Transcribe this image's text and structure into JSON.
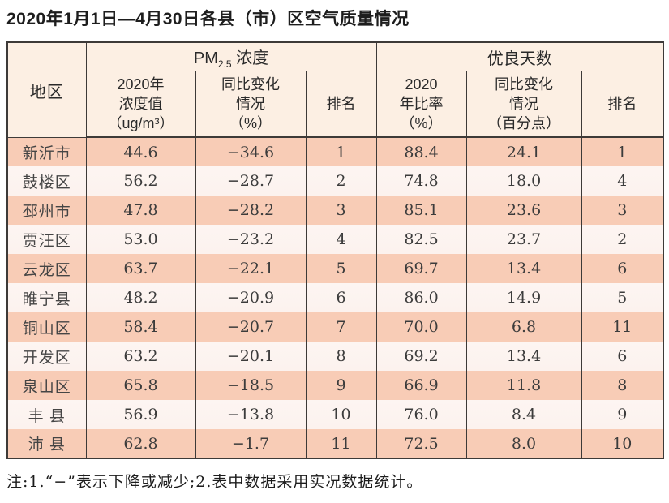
{
  "page": {
    "title": "2020年1月1日—4月30日各县（市）区空气质量情况",
    "note": "注:1.“−”表示下降或减少;2.表中数据采用实况数据统计。"
  },
  "table": {
    "region_header": "地区",
    "group1": {
      "prefix": "PM",
      "sub": "2.5",
      "suffix": " 浓度"
    },
    "group2": "优良天数",
    "subheaders": [
      "2020年\n浓度值\n（ug/m³）",
      "同比变化\n情况\n（%）",
      "排名",
      "2020\n年比率\n（%）",
      "同比变化\n情况\n（百分点）",
      "排名"
    ]
  },
  "colors": {
    "row_odd": "#f8ccb6",
    "row_even": "#fcf2ee",
    "header_bg": "#fcefe3",
    "border": "#3d3a38"
  },
  "chart_data": {
    "type": "table",
    "title": "2020年1月1日—4月30日各县（市）区空气质量情况",
    "columns": [
      "地区",
      "PM2.5浓度 2020年浓度值（ug/m³）",
      "PM2.5浓度 同比变化情况（%）",
      "PM2.5浓度 排名",
      "优良天数 2020年比率（%）",
      "优良天数 同比变化情况（百分点）",
      "优良天数 排名"
    ],
    "rows": [
      [
        "新沂市",
        "44.6",
        "−34.6",
        "1",
        "88.4",
        "24.1",
        "1"
      ],
      [
        "鼓楼区",
        "56.2",
        "−28.7",
        "2",
        "74.8",
        "18.0",
        "4"
      ],
      [
        "邳州市",
        "47.8",
        "−28.2",
        "3",
        "85.1",
        "23.6",
        "3"
      ],
      [
        "贾汪区",
        "53.0",
        "−23.2",
        "4",
        "82.5",
        "23.7",
        "2"
      ],
      [
        "云龙区",
        "63.7",
        "−22.1",
        "5",
        "69.7",
        "13.4",
        "6"
      ],
      [
        "睢宁县",
        "48.2",
        "−20.9",
        "6",
        "86.0",
        "14.9",
        "5"
      ],
      [
        "铜山区",
        "58.4",
        "−20.7",
        "7",
        "70.0",
        "6.8",
        "11"
      ],
      [
        "开发区",
        "63.2",
        "−20.1",
        "8",
        "69.2",
        "13.4",
        "6"
      ],
      [
        "泉山区",
        "65.8",
        "−18.5",
        "9",
        "66.9",
        "11.8",
        "8"
      ],
      [
        "丰 县",
        "56.9",
        "−13.8",
        "10",
        "76.0",
        "8.4",
        "9"
      ],
      [
        "沛 县",
        "62.8",
        "−1.7",
        "11",
        "72.5",
        "8.0",
        "10"
      ]
    ]
  }
}
